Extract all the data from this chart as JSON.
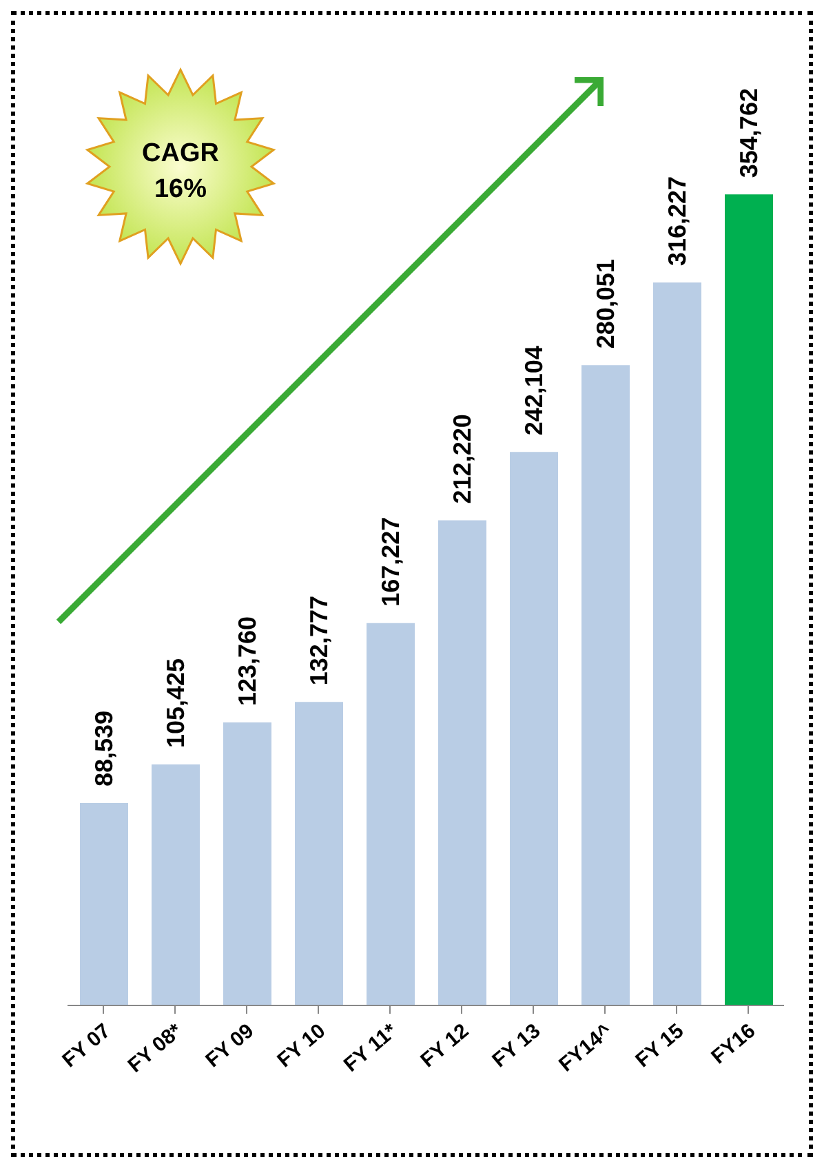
{
  "chart_data": {
    "type": "bar",
    "categories": [
      "FY 07",
      "FY 08*",
      "FY 09",
      "FY 10",
      "FY 11*",
      "FY 12",
      "FY 13",
      "FY14^",
      "FY 15",
      "FY16"
    ],
    "values": [
      88539,
      105425,
      123760,
      132777,
      167227,
      212220,
      242104,
      280051,
      316227,
      354762
    ],
    "colors": [
      "#b9cde5",
      "#b9cde5",
      "#b9cde5",
      "#b9cde5",
      "#b9cde5",
      "#b9cde5",
      "#b9cde5",
      "#b9cde5",
      "#b9cde5",
      "#00b050"
    ],
    "value_labels": [
      "88,539",
      "105,425",
      "123,760",
      "132,777",
      "167,227",
      "212,220",
      "242,104",
      "280,051",
      "316,227",
      "354,762"
    ],
    "annotations": [
      "CAGR 16%"
    ]
  }
}
